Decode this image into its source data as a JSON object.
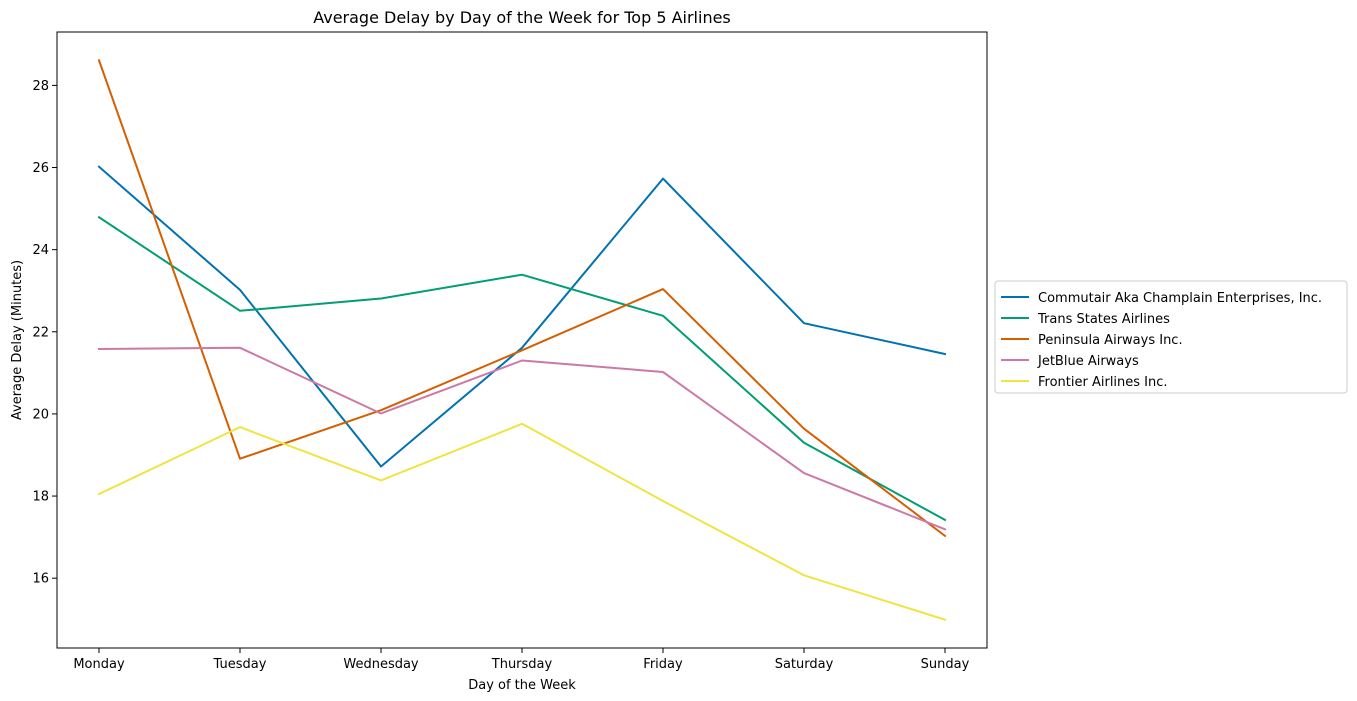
{
  "chart_data": {
    "type": "line",
    "title": "Average Delay by Day of the Week for Top 5 Airlines",
    "xlabel": "Day of the Week",
    "ylabel": "Average Delay (Minutes)",
    "categories": [
      "Monday",
      "Tuesday",
      "Wednesday",
      "Thursday",
      "Friday",
      "Saturday",
      "Sunday"
    ],
    "ylim": [
      14.3,
      29.3
    ],
    "yticks": [
      16,
      18,
      20,
      22,
      24,
      26,
      28
    ],
    "grid": false,
    "legend_position": "center-right, outside plot",
    "series": [
      {
        "name": "Commutair Aka Champlain Enterprises, Inc.",
        "color": "#0072b2",
        "values": [
          26.02,
          23.02,
          18.72,
          21.61,
          25.73,
          22.21,
          21.46
        ]
      },
      {
        "name": "Trans States Airlines",
        "color": "#009e73",
        "values": [
          24.79,
          22.51,
          22.81,
          23.39,
          22.39,
          19.3,
          17.42
        ]
      },
      {
        "name": "Peninsula Airways Inc.",
        "color": "#d55e00",
        "values": [
          28.61,
          18.91,
          20.09,
          21.55,
          23.04,
          19.64,
          17.03
        ]
      },
      {
        "name": "JetBlue Airways",
        "color": "#cc79a7",
        "values": [
          21.58,
          21.61,
          20.01,
          21.3,
          21.02,
          18.56,
          17.19
        ]
      },
      {
        "name": "Frontier Airlines Inc.",
        "color": "#f0e442",
        "values": [
          18.05,
          19.68,
          18.38,
          19.76,
          17.88,
          16.07,
          14.99
        ]
      }
    ]
  }
}
